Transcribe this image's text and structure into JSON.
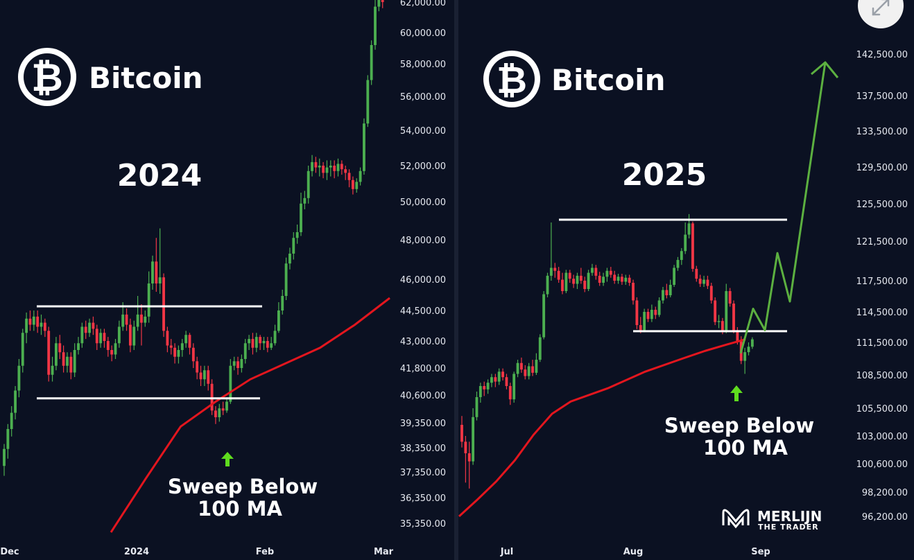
{
  "colors": {
    "background": "#0b1122",
    "bullish": "#4caf50",
    "bearish": "#f23645",
    "ma": "#e3161e",
    "projection": "#5cb040",
    "arrow": "#5fdc1e",
    "level": "#ffffff"
  },
  "watermark": {
    "line1": "MERLIJN",
    "line2": "THE TRADER"
  },
  "expand_button": {
    "icon": "expand-icon"
  },
  "chart_data": [
    {
      "type": "candlestick",
      "brand": "Bitcoin",
      "year_label": "2024",
      "annotation": {
        "line1": "Sweep Below",
        "line2": "100 MA"
      },
      "y_ticks": [
        "62,000.00",
        "60,000.00",
        "58,000.00",
        "56,000.00",
        "54,000.00",
        "52,000.00",
        "50,000.00",
        "48,000.00",
        "46,000.00",
        "44,500.00",
        "43,000.00",
        "41,800.00",
        "40,600.00",
        "39,350.00",
        "38,350.00",
        "37,350.00",
        "36,350.00",
        "35,350.00"
      ],
      "x_ticks": [
        "Dec",
        "2024",
        "Feb",
        "Mar"
      ],
      "ylim": [
        35000,
        62500
      ],
      "range_high": 44700,
      "range_low": 40450,
      "candles": [
        [
          37600,
          38300,
          37200,
          38500
        ],
        [
          38300,
          39100,
          37900,
          39300
        ],
        [
          39100,
          39800,
          38800,
          40100
        ],
        [
          39800,
          40800,
          39500,
          41000
        ],
        [
          40800,
          41900,
          40500,
          42200
        ],
        [
          41900,
          43400,
          41600,
          43600
        ],
        [
          43400,
          44100,
          42900,
          44400
        ],
        [
          44100,
          43800,
          43500,
          44500
        ],
        [
          43800,
          44200,
          43500,
          44500
        ],
        [
          44200,
          43700,
          43400,
          44500
        ],
        [
          43700,
          43900,
          43300,
          44300
        ],
        [
          43900,
          43500,
          43200,
          44100
        ],
        [
          43500,
          41500,
          41200,
          43700
        ],
        [
          41500,
          41900,
          41200,
          42300
        ],
        [
          41900,
          42900,
          41700,
          43200
        ],
        [
          42900,
          42500,
          42200,
          43300
        ],
        [
          42500,
          41900,
          41600,
          42800
        ],
        [
          41900,
          42300,
          41600,
          42500
        ],
        [
          42300,
          41600,
          41300,
          42500
        ],
        [
          41600,
          42600,
          41400,
          42900
        ],
        [
          42600,
          42900,
          42400,
          43200
        ],
        [
          42900,
          43700,
          42700,
          43900
        ],
        [
          43700,
          43400,
          43100,
          44000
        ],
        [
          43400,
          43900,
          43200,
          44100
        ],
        [
          43900,
          43600,
          43300,
          44200
        ],
        [
          43600,
          42900,
          42600,
          43800
        ],
        [
          42900,
          43400,
          42700,
          43600
        ],
        [
          43400,
          43000,
          42700,
          43600
        ],
        [
          43000,
          42600,
          42300,
          43200
        ],
        [
          42600,
          42400,
          42100,
          42800
        ],
        [
          42400,
          42900,
          42200,
          43100
        ],
        [
          42900,
          43700,
          42700,
          44000
        ],
        [
          43700,
          44300,
          43500,
          44900
        ],
        [
          44300,
          43800,
          43500,
          44600
        ],
        [
          43800,
          42800,
          42500,
          44100
        ],
        [
          42800,
          43700,
          42600,
          44000
        ],
        [
          43700,
          44300,
          43500,
          45200
        ],
        [
          44300,
          43900,
          42800,
          44800
        ],
        [
          43900,
          44200,
          43700,
          44500
        ],
        [
          44200,
          45800,
          43900,
          46400
        ],
        [
          45800,
          46900,
          45500,
          47200
        ],
        [
          46900,
          45800,
          45400,
          48100
        ],
        [
          45800,
          46100,
          45300,
          48600
        ],
        [
          46100,
          43500,
          43200,
          46300
        ],
        [
          43500,
          42800,
          42500,
          43700
        ],
        [
          42800,
          42700,
          42400,
          43100
        ],
        [
          42700,
          42300,
          42000,
          42900
        ],
        [
          42300,
          42600,
          42000,
          42800
        ],
        [
          42600,
          42900,
          42300,
          43100
        ],
        [
          42900,
          43300,
          42700,
          43500
        ],
        [
          43300,
          42700,
          42400,
          43400
        ],
        [
          42700,
          42100,
          41800,
          42900
        ],
        [
          42100,
          41600,
          41300,
          42300
        ],
        [
          41600,
          41300,
          41000,
          41900
        ],
        [
          41300,
          41700,
          41000,
          41900
        ],
        [
          41700,
          41100,
          40800,
          41900
        ],
        [
          41100,
          39900,
          39700,
          41300
        ],
        [
          39900,
          39600,
          39300,
          40100
        ],
        [
          39600,
          40000,
          39400,
          40200
        ],
        [
          40000,
          39900,
          39700,
          40300
        ],
        [
          39900,
          40300,
          39800,
          40500
        ],
        [
          40300,
          41900,
          40200,
          42200
        ],
        [
          41900,
          42100,
          41700,
          42300
        ],
        [
          42100,
          41800,
          41500,
          42300
        ],
        [
          41800,
          42200,
          41600,
          42400
        ],
        [
          42200,
          42900,
          42000,
          43100
        ],
        [
          42900,
          43100,
          42600,
          43300
        ],
        [
          43100,
          42700,
          42400,
          43400
        ],
        [
          42700,
          43200,
          42500,
          43400
        ],
        [
          43200,
          42900,
          42600,
          43300
        ],
        [
          42900,
          43000,
          42600,
          43200
        ],
        [
          43000,
          42700,
          42500,
          43200
        ],
        [
          42700,
          42900,
          42600,
          43200
        ],
        [
          42900,
          43500,
          42800,
          43800
        ],
        [
          43500,
          44500,
          43400,
          44900
        ],
        [
          44500,
          45200,
          44300,
          45500
        ],
        [
          45200,
          46800,
          45000,
          47100
        ],
        [
          46800,
          47300,
          46500,
          47600
        ],
        [
          47300,
          48100,
          47000,
          48400
        ],
        [
          48100,
          48400,
          47800,
          48800
        ],
        [
          48400,
          49900,
          48200,
          50500
        ],
        [
          49900,
          50200,
          49600,
          50600
        ],
        [
          50200,
          51700,
          49900,
          52000
        ],
        [
          51700,
          52200,
          51400,
          52600
        ],
        [
          52200,
          51900,
          51600,
          52500
        ],
        [
          51900,
          52000,
          51400,
          52400
        ],
        [
          52000,
          51600,
          51300,
          52200
        ],
        [
          51600,
          51900,
          51200,
          52300
        ],
        [
          51900,
          52000,
          51400,
          52300
        ],
        [
          52000,
          51700,
          51300,
          52300
        ],
        [
          51700,
          52100,
          51400,
          52400
        ],
        [
          52100,
          51800,
          51500,
          52300
        ],
        [
          51800,
          51600,
          51200,
          52000
        ],
        [
          51600,
          51200,
          50800,
          51800
        ],
        [
          51200,
          50700,
          50400,
          51400
        ],
        [
          50700,
          51100,
          50500,
          51300
        ],
        [
          51100,
          51700,
          50900,
          51900
        ],
        [
          51700,
          54400,
          51500,
          54700
        ],
        [
          54400,
          57000,
          54200,
          57300
        ],
        [
          57000,
          59200,
          56700,
          59500
        ],
        [
          59200,
          61700,
          58900,
          62200
        ],
        [
          61700,
          62300,
          61400,
          62600
        ],
        [
          62300,
          62000,
          61600,
          62600
        ]
      ],
      "ma": [
        [
          0,
          35000
        ],
        [
          7,
          37100
        ],
        [
          14,
          39200
        ],
        [
          21,
          40300
        ],
        [
          28,
          41300
        ],
        [
          35,
          42000
        ],
        [
          42,
          42700
        ],
        [
          49,
          43800
        ],
        [
          56,
          45100
        ]
      ]
    },
    {
      "type": "candlestick",
      "brand": "Bitcoin",
      "year_label": "2025",
      "annotation": {
        "line1": "Sweep Below",
        "line2": "100 MA"
      },
      "y_ticks": [
        "142,500.00",
        "137,500.00",
        "133,500.00",
        "129,500.00",
        "125,500.00",
        "121,500.00",
        "117,500.00",
        "114,500.00",
        "111,500.00",
        "108,500.00",
        "105,500.00",
        "103,000.00",
        "100,600.00",
        "98,200.00",
        "96,200.00"
      ],
      "x_ticks": [
        "Jul",
        "Aug",
        "Sep"
      ],
      "ylim": [
        95000,
        146500
      ],
      "range_high": 123800,
      "range_low": 112600,
      "candles": [
        [
          104000,
          102500,
          102000,
          104800
        ],
        [
          102500,
          101500,
          99000,
          103000
        ],
        [
          101500,
          100800,
          98500,
          102500
        ],
        [
          100800,
          104700,
          100500,
          105500
        ],
        [
          104700,
          106500,
          104400,
          107000
        ],
        [
          106500,
          107500,
          106000,
          107800
        ],
        [
          107500,
          107200,
          106600,
          107900
        ],
        [
          107200,
          107800,
          106800,
          108100
        ],
        [
          107800,
          108300,
          107400,
          108600
        ],
        [
          108300,
          107900,
          107400,
          108600
        ],
        [
          107900,
          108800,
          107600,
          109100
        ],
        [
          108800,
          108300,
          108000,
          109100
        ],
        [
          108300,
          107500,
          107200,
          108600
        ],
        [
          107500,
          106300,
          105800,
          107800
        ],
        [
          106300,
          108600,
          106000,
          108800
        ],
        [
          108600,
          109600,
          108300,
          109900
        ],
        [
          109600,
          109000,
          108700,
          110100
        ],
        [
          109000,
          108400,
          108100,
          109400
        ],
        [
          108400,
          109300,
          108100,
          109600
        ],
        [
          109300,
          108700,
          108400,
          109900
        ],
        [
          108700,
          109900,
          108500,
          110500
        ],
        [
          109900,
          112000,
          109700,
          112300
        ],
        [
          112000,
          116200,
          111800,
          116500
        ],
        [
          116200,
          118000,
          115900,
          118300
        ],
        [
          118000,
          118800,
          117500,
          123500
        ],
        [
          118800,
          118500,
          117800,
          119300
        ],
        [
          118500,
          117600,
          117300,
          118900
        ],
        [
          117600,
          116500,
          116200,
          118300
        ],
        [
          116500,
          118300,
          116300,
          118600
        ],
        [
          118300,
          117700,
          117300,
          118600
        ],
        [
          117700,
          117200,
          116800,
          118100
        ],
        [
          117200,
          118000,
          116700,
          118300
        ],
        [
          118000,
          117500,
          117200,
          118800
        ],
        [
          117500,
          116700,
          116400,
          117900
        ],
        [
          116700,
          118300,
          116500,
          118600
        ],
        [
          118300,
          118800,
          118000,
          119200
        ],
        [
          118800,
          118000,
          117600,
          119100
        ],
        [
          118000,
          117300,
          117000,
          118400
        ],
        [
          117300,
          117900,
          117000,
          118300
        ],
        [
          117900,
          118500,
          117400,
          118800
        ],
        [
          118500,
          118100,
          117800,
          118900
        ],
        [
          118100,
          117500,
          117200,
          118500
        ],
        [
          117500,
          117900,
          117200,
          118200
        ],
        [
          117900,
          117400,
          117100,
          118200
        ],
        [
          117400,
          117800,
          117100,
          118100
        ],
        [
          117800,
          117300,
          117000,
          118100
        ],
        [
          117300,
          115600,
          115200,
          117600
        ],
        [
          115600,
          113200,
          112800,
          115900
        ],
        [
          113200,
          112700,
          112400,
          114000
        ],
        [
          112700,
          114500,
          112500,
          114800
        ],
        [
          114500,
          113800,
          113500,
          114800
        ],
        [
          113800,
          114700,
          113500,
          115200
        ],
        [
          114700,
          114200,
          113800,
          115000
        ],
        [
          114200,
          115600,
          114000,
          115900
        ],
        [
          115600,
          116600,
          115300,
          116900
        ],
        [
          116600,
          116100,
          115800,
          117200
        ],
        [
          116100,
          117100,
          115900,
          117600
        ],
        [
          117100,
          118800,
          116900,
          119100
        ],
        [
          118800,
          119600,
          118500,
          119900
        ],
        [
          119600,
          120500,
          119100,
          120800
        ],
        [
          120500,
          122200,
          120200,
          123500
        ],
        [
          122200,
          123400,
          121800,
          124400
        ],
        [
          123400,
          118700,
          118400,
          123600
        ],
        [
          118700,
          117700,
          117400,
          119000
        ],
        [
          117700,
          117200,
          116900,
          118100
        ],
        [
          117200,
          117600,
          116900,
          118000
        ],
        [
          117600,
          117000,
          116700,
          118000
        ],
        [
          117000,
          115600,
          115300,
          117300
        ],
        [
          115600,
          113500,
          113200,
          115900
        ],
        [
          113500,
          113600,
          112900,
          114200
        ],
        [
          113600,
          112600,
          112300,
          113900
        ],
        [
          112600,
          116500,
          112400,
          117200
        ],
        [
          116500,
          115300,
          115000,
          116800
        ],
        [
          115300,
          112700,
          112400,
          115600
        ],
        [
          112700,
          111600,
          111300,
          113000
        ],
        [
          111600,
          109800,
          109500,
          112100
        ],
        [
          109800,
          110600,
          108600,
          111000
        ],
        [
          110600,
          111100,
          110300,
          111500
        ],
        [
          111100,
          111800,
          110900,
          112000
        ]
      ],
      "ma": [
        [
          0,
          96200
        ],
        [
          5,
          97600
        ],
        [
          10,
          99100
        ],
        [
          15,
          100900
        ],
        [
          20,
          103100
        ],
        [
          25,
          105000
        ],
        [
          30,
          106100
        ],
        [
          40,
          107300
        ],
        [
          50,
          108800
        ],
        [
          60,
          110000
        ],
        [
          66,
          110700
        ],
        [
          72,
          111300
        ],
        [
          77,
          111800
        ]
      ],
      "projection": [
        [
          111000,
          110500
        ],
        [
          112500,
          114800
        ],
        [
          110900,
          112700
        ],
        [
          115500,
          120300
        ],
        [
          114100,
          115500
        ],
        [
          120800,
          141500
        ]
      ]
    }
  ]
}
